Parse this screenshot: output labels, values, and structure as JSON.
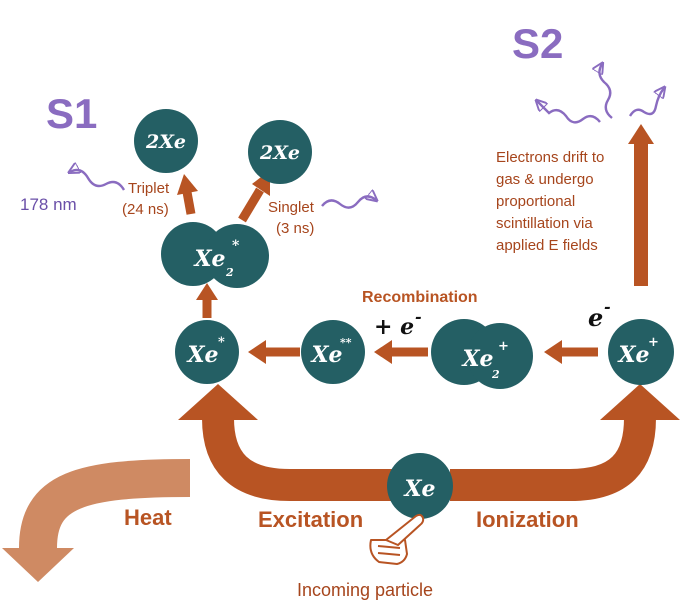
{
  "colors": {
    "teal": "#245f64",
    "orange": "#b85423",
    "light_orange": "#cf8a63",
    "purple": "#8a6cc0",
    "text_orange": "#a6451c",
    "label_purple": "#6a4fa8"
  },
  "signals": {
    "s1": "S1",
    "s2": "S2"
  },
  "atoms": {
    "xe_center": "Xe",
    "xe_excited": "Xe",
    "xe_excited_sup": "*",
    "xe_double_excited": "Xe",
    "xe_double_excited_sup": "**",
    "xe_ion": "Xe",
    "xe_ion_sup": "+",
    "xe2_ion": "Xe",
    "xe2_ion_sub": "2",
    "xe2_ion_sup": "+",
    "xe2_excited": "Xe",
    "xe2_excited_sub": "2",
    "xe2_excited_sup": "*",
    "xe_pair_left": "2Xe",
    "xe_pair_right": "2Xe"
  },
  "labels": {
    "wavelength": "178 nm",
    "triplet_line1": "Triplet",
    "triplet_line2": "(24 ns)",
    "singlet_line1": "Singlet",
    "singlet_line2": "(3 ns)",
    "recombination": "Recombination",
    "plus_electron": "+ e",
    "electron_sup": "-",
    "electron": "e",
    "s2_line1": "Electrons drift to",
    "s2_line2": "gas & undergo",
    "s2_line3": "proportional",
    "s2_line4": "scintillation via",
    "s2_line5": "applied E fields",
    "heat": "Heat",
    "excitation": "Excitation",
    "ionization": "Ionization",
    "incoming": "Incoming particle"
  },
  "icons": {
    "hand": "pointing-hand-icon",
    "photon": "wavy-photon-arrow-icon"
  }
}
